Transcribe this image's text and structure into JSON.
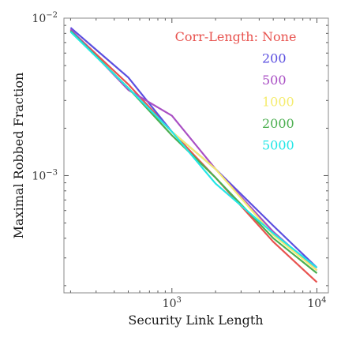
{
  "chart_data": {
    "type": "line",
    "title": "",
    "xlabel": "Security Link Length",
    "ylabel": "Maximal Robbed Fraction",
    "xscale": "log",
    "yscale": "log",
    "xlim": [
      180,
      12000
    ],
    "ylim": [
      0.00018,
      0.01
    ],
    "x_ticks": [
      {
        "value": 1000,
        "label": "10",
        "exp": "3"
      },
      {
        "value": 10000,
        "label": "10",
        "exp": "4"
      }
    ],
    "y_ticks": [
      {
        "value": 0.001,
        "label": "10",
        "exp": "−3"
      },
      {
        "value": 0.01,
        "label": "10",
        "exp": "−2"
      }
    ],
    "grid": false,
    "legend_title": "Corr-Length:",
    "legend_placement": "top-right",
    "x": [
      200,
      500,
      1000,
      2000,
      5000,
      10000
    ],
    "series": [
      {
        "name": "None",
        "color": "#e8534f",
        "values": [
          0.0084,
          0.0038,
          0.0019,
          0.00097,
          0.00038,
          0.00021
        ]
      },
      {
        "name": "200",
        "color": "#5b4fe0",
        "values": [
          0.0087,
          0.0042,
          0.0019,
          0.0011,
          0.00048,
          0.00026
        ]
      },
      {
        "name": "500",
        "color": "#a94fc4",
        "values": [
          0.0085,
          0.0035,
          0.0024,
          0.0011,
          0.00044,
          0.00025
        ]
      },
      {
        "name": "1000",
        "color": "#f5ec6e",
        "values": [
          0.0082,
          0.0036,
          0.0019,
          0.0011,
          0.00042,
          0.00025
        ]
      },
      {
        "name": "2000",
        "color": "#4caf50",
        "values": [
          0.0083,
          0.0036,
          0.0018,
          0.00097,
          0.0004,
          0.00024
        ]
      },
      {
        "name": "5000",
        "color": "#22e6e6",
        "values": [
          0.0082,
          0.0036,
          0.0019,
          0.00089,
          0.00043,
          0.00026
        ]
      }
    ]
  }
}
